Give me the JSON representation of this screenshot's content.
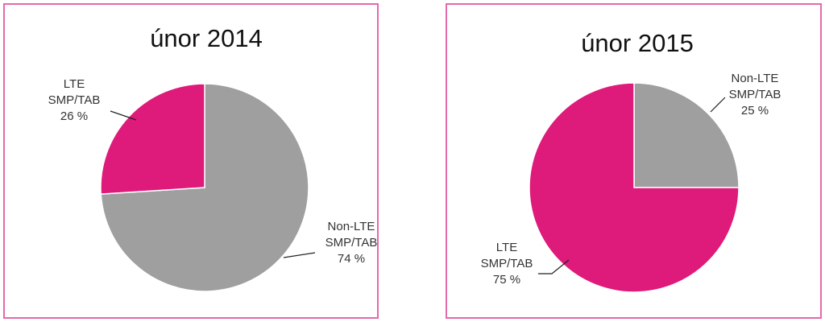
{
  "colors": {
    "lte": "#de1a7a",
    "non_lte": "#9f9f9f",
    "frame": "#e46aa8"
  },
  "chart_data": [
    {
      "type": "pie",
      "title": "únor 2014",
      "slices": [
        {
          "label": [
            "Non-LTE",
            "SMP/TAB",
            "74 %"
          ],
          "value": 74,
          "color": "#9f9f9f"
        },
        {
          "label": [
            "LTE",
            "SMP/TAB",
            "26 %"
          ],
          "value": 26,
          "color": "#de1a7a"
        }
      ]
    },
    {
      "type": "pie",
      "title": "únor 2015",
      "slices": [
        {
          "label": [
            "Non-LTE",
            "SMP/TAB",
            "25 %"
          ],
          "value": 25,
          "color": "#9f9f9f"
        },
        {
          "label": [
            "LTE",
            "SMP/TAB",
            "75 %"
          ],
          "value": 75,
          "color": "#de1a7a"
        }
      ]
    }
  ]
}
